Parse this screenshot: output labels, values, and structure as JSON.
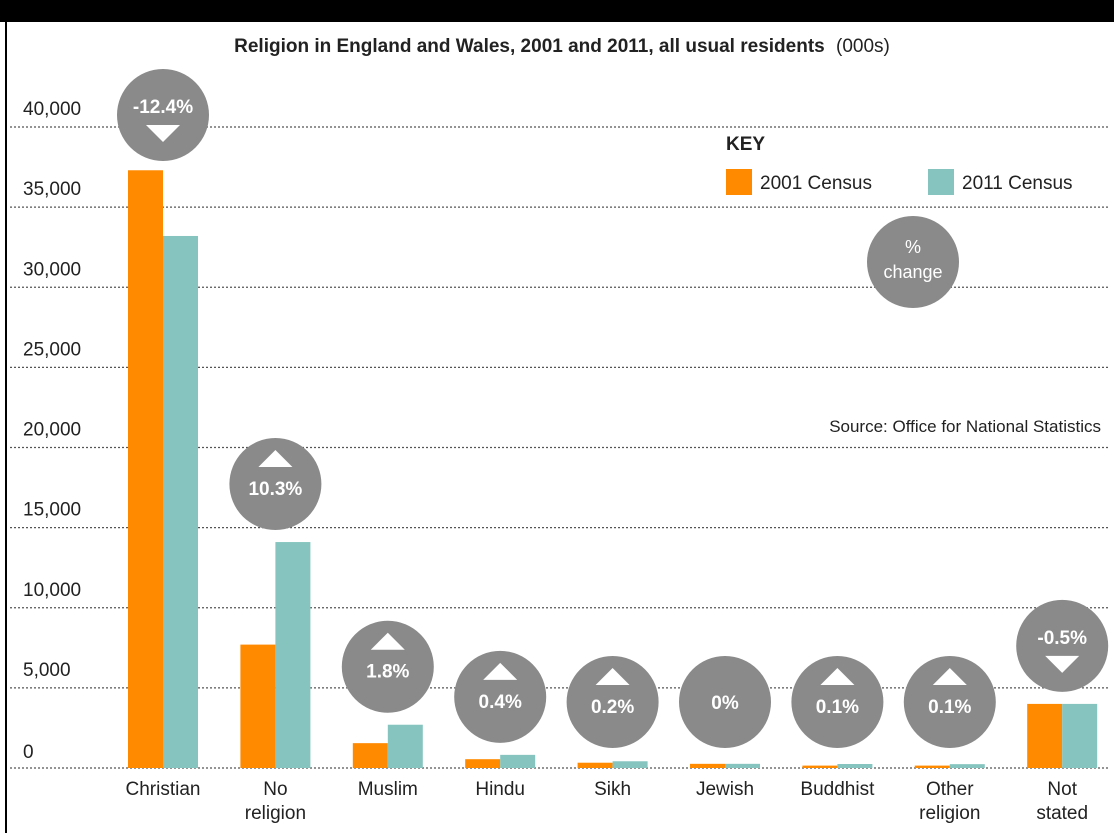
{
  "chart_data": {
    "type": "bar",
    "title": "Religion in England and Wales, 2001 and 2011, all usual residents",
    "title_suffix": "(000s)",
    "categories": [
      [
        "Christian"
      ],
      [
        "No",
        "religion"
      ],
      [
        "Muslim"
      ],
      [
        "Hindu"
      ],
      [
        "Sikh"
      ],
      [
        "Jewish"
      ],
      [
        "Buddhist"
      ],
      [
        "Other",
        "religion"
      ],
      [
        "Not",
        "stated"
      ]
    ],
    "series": [
      {
        "name": "2001 Census",
        "color": "#ff8a00",
        "values": [
          37300,
          7700,
          1550,
          550,
          330,
          260,
          150,
          150,
          4000
        ]
      },
      {
        "name": "2011 Census",
        "color": "#86c5bf",
        "values": [
          33200,
          14100,
          2700,
          820,
          420,
          260,
          250,
          240,
          4000
        ]
      }
    ],
    "pct_change": [
      {
        "label": "-12.4%",
        "direction": "down"
      },
      {
        "label": "10.3%",
        "direction": "up"
      },
      {
        "label": "1.8%",
        "direction": "up"
      },
      {
        "label": "0.4%",
        "direction": "up"
      },
      {
        "label": "0.2%",
        "direction": "up"
      },
      {
        "label": "0%",
        "direction": "none"
      },
      {
        "label": "0.1%",
        "direction": "up"
      },
      {
        "label": "0.1%",
        "direction": "up"
      },
      {
        "label": "-0.5%",
        "direction": "down"
      }
    ],
    "y_ticks": [
      "0",
      "5,000",
      "10,000",
      "15,000",
      "20,000",
      "25,000",
      "30,000",
      "35,000",
      "40,000"
    ],
    "ylim": [
      0,
      40000
    ],
    "grid": true,
    "legend": {
      "title": "KEY",
      "placement": "top-right",
      "change_label_line1": "%",
      "change_label_line2": "change"
    },
    "source": "Source: Office for National Statistics",
    "circle_color": "#8a8a8a"
  }
}
